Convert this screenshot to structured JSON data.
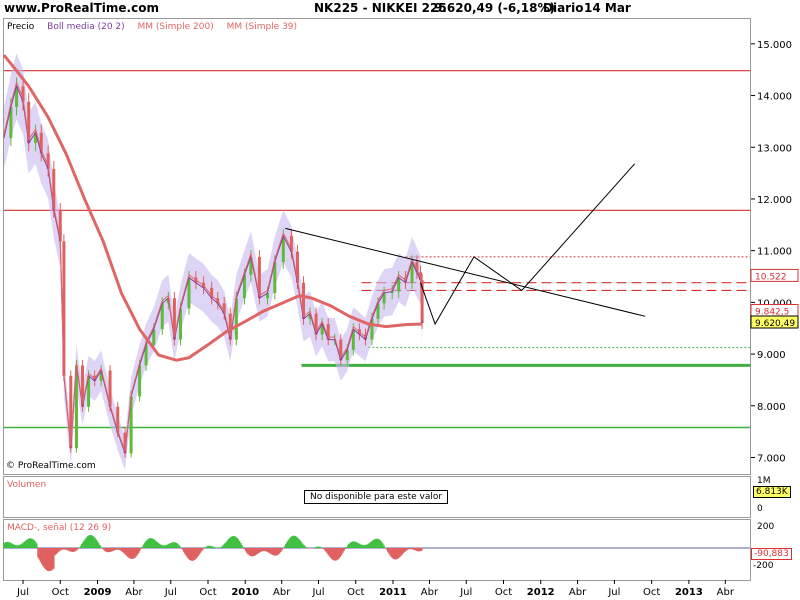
{
  "header": {
    "site": "www.ProRealTime.com",
    "instrument": "NK225 - NIKKEI 225",
    "quote": "9.620,49 (-6,18%)",
    "period": "Diario",
    "date": "14 Mar"
  },
  "legend": {
    "price": "Precio",
    "boll": "Boll media (20 2)",
    "mm200": "MM (Simple 200)",
    "mm39": "MM (Simple 39)"
  },
  "copyright": "© ProRealTime.com",
  "volume": {
    "label": "Volumen",
    "message": "No disponible para este valor",
    "axis_top": "1M",
    "axis_bottom": "0",
    "value_badge": "6.813K"
  },
  "macd": {
    "label": "MACD-, señal (12 26 9)",
    "axis_top": "200",
    "axis_bottom": "-200",
    "value_badge": "-90,883"
  },
  "colors": {
    "price_up": "#5fba3c",
    "price_down": "#e06060",
    "boll_band": "#c8b8f0",
    "boll_mid": "#8040a0",
    "mm200": "#e06666",
    "hline_red": "#d83030",
    "hline_green": "#40b040",
    "macd_pos": "#40c040",
    "macd_neg": "#e06060",
    "badge_bg": "#ffff66"
  },
  "chart_data": {
    "type": "line",
    "ylim": [
      6700,
      15500
    ],
    "yticks": [
      7000,
      8000,
      9000,
      10000,
      11000,
      12000,
      13000,
      14000,
      15000
    ],
    "ytick_labels": [
      "7.000",
      "8.000",
      "9.000",
      "10.000",
      "11.000",
      "12.000",
      "13.000",
      "14.000",
      "15.000"
    ],
    "xlim": [
      "2008-05-15",
      "2013-06-01"
    ],
    "xticks": [
      {
        "date": "2008-07-01",
        "label": "Jul",
        "bold": false
      },
      {
        "date": "2008-10-01",
        "label": "Oct",
        "bold": false
      },
      {
        "date": "2009-01-01",
        "label": "2009",
        "bold": true
      },
      {
        "date": "2009-04-01",
        "label": "Abr",
        "bold": false
      },
      {
        "date": "2009-07-01",
        "label": "Jul",
        "bold": false
      },
      {
        "date": "2009-10-01",
        "label": "Oct",
        "bold": false
      },
      {
        "date": "2010-01-01",
        "label": "2010",
        "bold": true
      },
      {
        "date": "2010-04-01",
        "label": "Abr",
        "bold": false
      },
      {
        "date": "2010-07-01",
        "label": "Jul",
        "bold": false
      },
      {
        "date": "2010-10-01",
        "label": "Oct",
        "bold": false
      },
      {
        "date": "2011-01-01",
        "label": "2011",
        "bold": true
      },
      {
        "date": "2011-04-01",
        "label": "Abr",
        "bold": false
      },
      {
        "date": "2011-07-01",
        "label": "Jul",
        "bold": false
      },
      {
        "date": "2011-10-01",
        "label": "Oct",
        "bold": false
      },
      {
        "date": "2012-01-01",
        "label": "2012",
        "bold": true
      },
      {
        "date": "2012-04-01",
        "label": "Abr",
        "bold": false
      },
      {
        "date": "2012-07-01",
        "label": "Jul",
        "bold": false
      },
      {
        "date": "2012-10-01",
        "label": "Oct",
        "bold": false
      },
      {
        "date": "2013-01-01",
        "label": "2013",
        "bold": true
      },
      {
        "date": "2013-04-01",
        "label": "Abr",
        "bold": false
      }
    ],
    "series": [
      {
        "name": "Precio",
        "points": [
          [
            "2008-05-15",
            13200
          ],
          [
            "2008-06-01",
            13800
          ],
          [
            "2008-06-15",
            14200
          ],
          [
            "2008-07-01",
            13900
          ],
          [
            "2008-07-15",
            13100
          ],
          [
            "2008-08-01",
            13300
          ],
          [
            "2008-08-15",
            12900
          ],
          [
            "2008-09-01",
            12600
          ],
          [
            "2008-09-15",
            11800
          ],
          [
            "2008-10-01",
            11200
          ],
          [
            "2008-10-10",
            8600
          ],
          [
            "2008-10-27",
            7200
          ],
          [
            "2008-11-10",
            8800
          ],
          [
            "2008-11-25",
            8000
          ],
          [
            "2008-12-10",
            8600
          ],
          [
            "2008-12-25",
            8500
          ],
          [
            "2009-01-10",
            8700
          ],
          [
            "2009-02-01",
            8000
          ],
          [
            "2009-02-20",
            7500
          ],
          [
            "2009-03-10",
            7100
          ],
          [
            "2009-03-25",
            8200
          ],
          [
            "2009-04-15",
            8800
          ],
          [
            "2009-05-01",
            9200
          ],
          [
            "2009-05-20",
            9500
          ],
          [
            "2009-06-10",
            10000
          ],
          [
            "2009-06-25",
            10100
          ],
          [
            "2009-07-10",
            9300
          ],
          [
            "2009-07-25",
            9900
          ],
          [
            "2009-08-15",
            10500
          ],
          [
            "2009-09-01",
            10400
          ],
          [
            "2009-09-20",
            10300
          ],
          [
            "2009-10-10",
            10100
          ],
          [
            "2009-10-25",
            10000
          ],
          [
            "2009-11-10",
            9800
          ],
          [
            "2009-11-25",
            9300
          ],
          [
            "2009-12-10",
            10100
          ],
          [
            "2009-12-30",
            10550
          ],
          [
            "2010-01-15",
            10900
          ],
          [
            "2010-02-05",
            10100
          ],
          [
            "2010-02-25",
            10200
          ],
          [
            "2010-03-15",
            10800
          ],
          [
            "2010-04-05",
            11300
          ],
          [
            "2010-04-25",
            11000
          ],
          [
            "2010-05-10",
            10400
          ],
          [
            "2010-05-25",
            9700
          ],
          [
            "2010-06-10",
            9800
          ],
          [
            "2010-06-25",
            9400
          ],
          [
            "2010-07-10",
            9600
          ],
          [
            "2010-07-25",
            9300
          ],
          [
            "2010-08-10",
            9300
          ],
          [
            "2010-08-25",
            8900
          ],
          [
            "2010-09-10",
            9100
          ],
          [
            "2010-09-25",
            9500
          ],
          [
            "2010-10-10",
            9400
          ],
          [
            "2010-10-25",
            9300
          ],
          [
            "2010-11-10",
            9700
          ],
          [
            "2010-11-25",
            10000
          ],
          [
            "2010-12-10",
            10200
          ],
          [
            "2010-12-30",
            10230
          ],
          [
            "2011-01-15",
            10500
          ],
          [
            "2011-02-01",
            10400
          ],
          [
            "2011-02-17",
            10800
          ],
          [
            "2011-03-01",
            10600
          ],
          [
            "2011-03-10",
            10450
          ],
          [
            "2011-03-14",
            9620
          ]
        ]
      },
      {
        "name": "MM (Simple 200)",
        "points": [
          [
            "2008-05-15",
            14800
          ],
          [
            "2008-06-15",
            14500
          ],
          [
            "2008-07-15",
            14200
          ],
          [
            "2008-09-01",
            13600
          ],
          [
            "2008-10-15",
            12900
          ],
          [
            "2008-12-01",
            12000
          ],
          [
            "2009-01-15",
            11200
          ],
          [
            "2009-03-01",
            10200
          ],
          [
            "2009-04-15",
            9500
          ],
          [
            "2009-06-01",
            9000
          ],
          [
            "2009-07-15",
            8900
          ],
          [
            "2009-08-15",
            8950
          ],
          [
            "2009-10-01",
            9200
          ],
          [
            "2009-11-15",
            9450
          ],
          [
            "2010-01-01",
            9650
          ],
          [
            "2010-02-15",
            9850
          ],
          [
            "2010-04-01",
            10000
          ],
          [
            "2010-05-15",
            10150
          ],
          [
            "2010-06-15",
            10100
          ],
          [
            "2010-08-01",
            9950
          ],
          [
            "2010-09-15",
            9750
          ],
          [
            "2010-11-01",
            9600
          ],
          [
            "2010-12-15",
            9550
          ],
          [
            "2011-02-01",
            9590
          ],
          [
            "2011-03-14",
            9600
          ]
        ]
      }
    ],
    "hlines_red": [
      14500,
      11800
    ],
    "hlines_red_dashed": [
      10400,
      10250
    ],
    "hlines_red_dotted": [
      10900
    ],
    "hlines_green": [
      7600
    ],
    "support_green": {
      "y": 8800,
      "from": "2010-05-20",
      "to": "2013-06-01"
    },
    "support_green_dotted": {
      "y": 9150,
      "from": "2010-11-01",
      "to": "2013-06-01"
    },
    "trendline": [
      [
        "2010-04-10",
        11450
      ],
      [
        "2012-09-15",
        9750
      ]
    ],
    "projection": [
      [
        "2011-03-10",
        10400
      ],
      [
        "2011-04-15",
        9600
      ],
      [
        "2011-07-20",
        10900
      ],
      [
        "2011-11-15",
        10250
      ],
      [
        "2012-08-20",
        12700
      ]
    ],
    "price_axis_badges": [
      {
        "value": 10522,
        "label": "10.522",
        "style": "red"
      },
      {
        "value": 9842.5,
        "label": "9.842,5",
        "style": "red"
      },
      {
        "value": 9620.49,
        "label": "9.620,49",
        "style": "yellow"
      }
    ]
  }
}
